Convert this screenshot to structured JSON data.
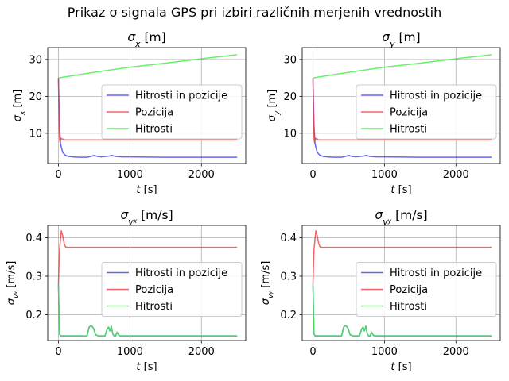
{
  "suptitle": "Prikaz σ signala GPS pri izbiri različnih merjenih vrednostih",
  "legend_labels": [
    "Hitrosti in pozicije",
    "Pozicija",
    "Hitrosti"
  ],
  "colors": {
    "Hitrosti in pozicije": "#4040ee",
    "Pozicija": "#ee4040",
    "Hitrosti": "#40ee40"
  },
  "chart_data": [
    {
      "type": "line",
      "title": "σx [m]",
      "xlabel": "t [s]",
      "ylabel": "σx [m]",
      "xlim": [
        -150,
        2620
      ],
      "ylim": [
        1.8,
        33.2
      ],
      "xticks": [
        0,
        1000,
        2000
      ],
      "yticks": [
        10,
        20,
        30
      ],
      "grid": true,
      "legend": "center-right",
      "series": [
        {
          "name": "Hitrosti in pozicije",
          "color": "#4040ee",
          "x": [
            0,
            15,
            30,
            60,
            100,
            150,
            200,
            300,
            400,
            450,
            500,
            550,
            600,
            650,
            700,
            750,
            800,
            900,
            1000,
            1500,
            2000,
            2500
          ],
          "y": [
            25,
            12,
            7,
            4.8,
            4.0,
            3.7,
            3.6,
            3.5,
            3.5,
            3.7,
            4.0,
            3.7,
            3.6,
            3.7,
            3.8,
            4.0,
            3.7,
            3.6,
            3.6,
            3.5,
            3.5,
            3.5
          ]
        },
        {
          "name": "Pozicija",
          "color": "#ee4040",
          "x": [
            0,
            10,
            20,
            40,
            60,
            80,
            120,
            200,
            2500
          ],
          "y": [
            25,
            10,
            7.6,
            8.6,
            8.4,
            8.2,
            8.2,
            8.2,
            8.2
          ]
        },
        {
          "name": "Hitrosti",
          "color": "#40ee40",
          "x": [
            0,
            500,
            1000,
            1500,
            2000,
            2500
          ],
          "y": [
            25.0,
            26.5,
            27.9,
            29.0,
            30.2,
            31.3
          ]
        }
      ]
    },
    {
      "type": "line",
      "title": "σy [m]",
      "xlabel": "t [s]",
      "ylabel": "σy [m]",
      "xlim": [
        -150,
        2620
      ],
      "ylim": [
        1.8,
        33.2
      ],
      "xticks": [
        0,
        1000,
        2000
      ],
      "yticks": [
        10,
        20,
        30
      ],
      "grid": true,
      "legend": "center-right",
      "series": [
        {
          "name": "Hitrosti in pozicije",
          "color": "#4040ee",
          "x": [
            0,
            15,
            30,
            60,
            100,
            150,
            200,
            300,
            400,
            450,
            500,
            550,
            600,
            650,
            700,
            750,
            800,
            900,
            1000,
            1500,
            2000,
            2500
          ],
          "y": [
            25,
            12,
            7,
            4.8,
            4.0,
            3.7,
            3.6,
            3.5,
            3.5,
            3.7,
            4.0,
            3.7,
            3.6,
            3.7,
            3.8,
            4.0,
            3.7,
            3.6,
            3.6,
            3.5,
            3.5,
            3.5
          ]
        },
        {
          "name": "Pozicija",
          "color": "#ee4040",
          "x": [
            0,
            10,
            20,
            40,
            60,
            80,
            120,
            200,
            2500
          ],
          "y": [
            25,
            10,
            7.6,
            8.6,
            8.4,
            8.2,
            8.2,
            8.2,
            8.2
          ]
        },
        {
          "name": "Hitrosti",
          "color": "#40ee40",
          "x": [
            0,
            500,
            1000,
            1500,
            2000,
            2500
          ],
          "y": [
            25.0,
            26.5,
            27.9,
            29.0,
            30.2,
            31.3
          ]
        }
      ]
    },
    {
      "type": "line",
      "title": "σvx [m/s]",
      "xlabel": "t [s]",
      "ylabel": "σvx [m/s]",
      "xlim": [
        -150,
        2620
      ],
      "ylim": [
        0.133,
        0.432
      ],
      "xticks": [
        0,
        1000,
        2000
      ],
      "yticks": [
        0.2,
        0.3,
        0.4
      ],
      "grid": true,
      "legend": "center-right",
      "series": [
        {
          "name": "Hitrosti in pozicije",
          "color": "#4040ee",
          "x": [
            0,
            8,
            15,
            30,
            100,
            400,
            430,
            460,
            490,
            520,
            560,
            600,
            650,
            680,
            700,
            720,
            740,
            760,
            780,
            800,
            820,
            840,
            860,
            900,
            1000,
            1500,
            2000,
            2500
          ],
          "y": [
            0.28,
            0.2,
            0.15,
            0.145,
            0.145,
            0.145,
            0.168,
            0.172,
            0.165,
            0.148,
            0.145,
            0.145,
            0.145,
            0.162,
            0.168,
            0.158,
            0.17,
            0.15,
            0.145,
            0.145,
            0.155,
            0.148,
            0.145,
            0.145,
            0.145,
            0.145,
            0.145,
            0.145
          ]
        },
        {
          "name": "Pozicija",
          "color": "#ee4040",
          "x": [
            0,
            15,
            40,
            60,
            80,
            100,
            130,
            200,
            2500
          ],
          "y": [
            0.28,
            0.37,
            0.418,
            0.405,
            0.385,
            0.376,
            0.375,
            0.375,
            0.375
          ]
        },
        {
          "name": "Hitrosti",
          "color": "#40ee40",
          "x": [
            0,
            8,
            15,
            30,
            100,
            400,
            430,
            460,
            490,
            520,
            560,
            600,
            650,
            680,
            700,
            720,
            740,
            760,
            780,
            800,
            820,
            840,
            860,
            900,
            1000,
            1500,
            2000,
            2500
          ],
          "y": [
            0.28,
            0.2,
            0.15,
            0.145,
            0.145,
            0.145,
            0.168,
            0.172,
            0.165,
            0.148,
            0.145,
            0.145,
            0.145,
            0.162,
            0.168,
            0.158,
            0.17,
            0.15,
            0.145,
            0.145,
            0.155,
            0.148,
            0.145,
            0.145,
            0.145,
            0.145,
            0.145,
            0.145
          ]
        }
      ]
    },
    {
      "type": "line",
      "title": "σvy [m/s]",
      "xlabel": "t [s]",
      "ylabel": "σvy [m/s]",
      "xlim": [
        -150,
        2620
      ],
      "ylim": [
        0.133,
        0.432
      ],
      "xticks": [
        0,
        1000,
        2000
      ],
      "yticks": [
        0.2,
        0.3,
        0.4
      ],
      "grid": true,
      "legend": "center-right",
      "series": [
        {
          "name": "Hitrosti in pozicije",
          "color": "#4040ee",
          "x": [
            0,
            8,
            15,
            30,
            100,
            400,
            430,
            460,
            490,
            520,
            560,
            600,
            650,
            680,
            700,
            720,
            740,
            760,
            780,
            800,
            820,
            840,
            860,
            900,
            1000,
            1500,
            2000,
            2500
          ],
          "y": [
            0.28,
            0.2,
            0.15,
            0.145,
            0.145,
            0.145,
            0.168,
            0.172,
            0.165,
            0.148,
            0.145,
            0.145,
            0.145,
            0.162,
            0.168,
            0.158,
            0.17,
            0.15,
            0.145,
            0.145,
            0.155,
            0.148,
            0.145,
            0.145,
            0.145,
            0.145,
            0.145,
            0.145
          ]
        },
        {
          "name": "Pozicija",
          "color": "#ee4040",
          "x": [
            0,
            15,
            40,
            60,
            80,
            100,
            130,
            200,
            2500
          ],
          "y": [
            0.28,
            0.37,
            0.418,
            0.405,
            0.385,
            0.376,
            0.375,
            0.375,
            0.375
          ]
        },
        {
          "name": "Hitrosti",
          "color": "#40ee40",
          "x": [
            0,
            8,
            15,
            30,
            100,
            400,
            430,
            460,
            490,
            520,
            560,
            600,
            650,
            680,
            700,
            720,
            740,
            760,
            780,
            800,
            820,
            840,
            860,
            900,
            1000,
            1500,
            2000,
            2500
          ],
          "y": [
            0.28,
            0.2,
            0.15,
            0.145,
            0.145,
            0.145,
            0.168,
            0.172,
            0.165,
            0.148,
            0.145,
            0.145,
            0.145,
            0.162,
            0.168,
            0.158,
            0.17,
            0.15,
            0.145,
            0.145,
            0.155,
            0.148,
            0.145,
            0.145,
            0.145,
            0.145,
            0.145,
            0.145
          ]
        }
      ]
    }
  ]
}
